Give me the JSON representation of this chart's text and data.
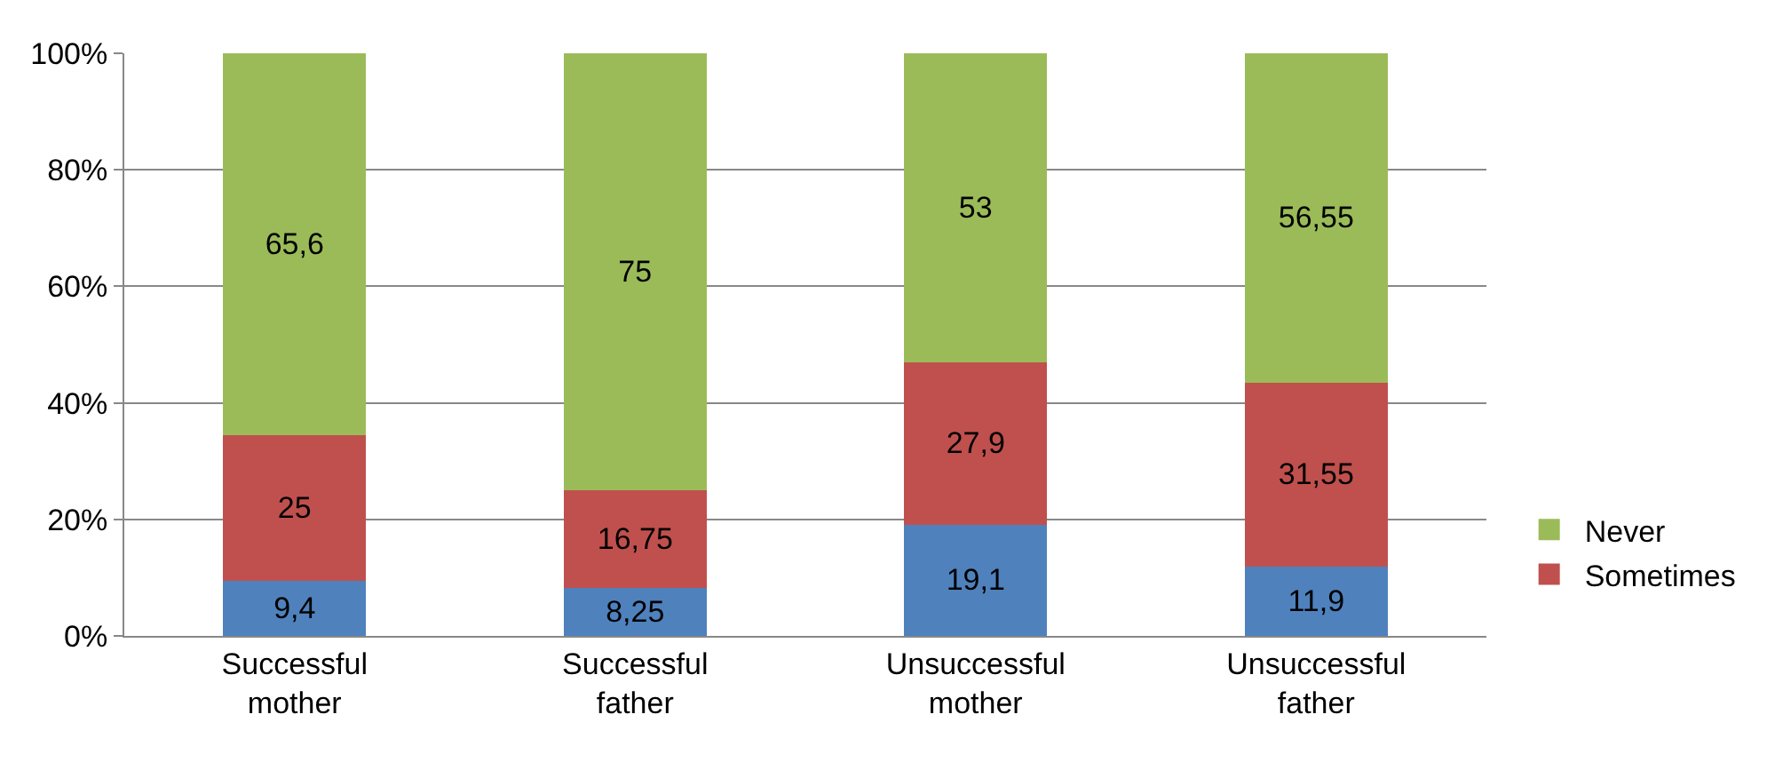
{
  "chart_data": {
    "type": "bar",
    "stacked": true,
    "categories": [
      "Successful mother",
      "Successful father",
      "Unsuccessful mother",
      "Unsuccessful father"
    ],
    "series": [
      {
        "color": "#4f81bd",
        "values": [
          9.4,
          8.25,
          19.1,
          11.9
        ],
        "value_labels": [
          "9,4",
          "8,25",
          "19,1",
          "11,9"
        ]
      },
      {
        "name": "Sometimes",
        "color": "#c0504d",
        "values": [
          25,
          16.75,
          27.9,
          31.55
        ],
        "value_labels": [
          "25",
          "16,75",
          "27,9",
          "31,55"
        ]
      },
      {
        "name": "Never",
        "color": "#9bbb59",
        "values": [
          65.6,
          75,
          53,
          56.55
        ],
        "value_labels": [
          "65,6",
          "75",
          "53",
          "56,55"
        ]
      }
    ],
    "ylim": [
      0,
      100
    ],
    "yticks": [
      {
        "value": 0,
        "label": "0%"
      },
      {
        "value": 20,
        "label": "20%"
      },
      {
        "value": 40,
        "label": "40%"
      },
      {
        "value": 60,
        "label": "60%"
      },
      {
        "value": 80,
        "label": "80%"
      },
      {
        "value": 100,
        "label": "100%"
      }
    ],
    "grid": "y",
    "legend": "right"
  }
}
